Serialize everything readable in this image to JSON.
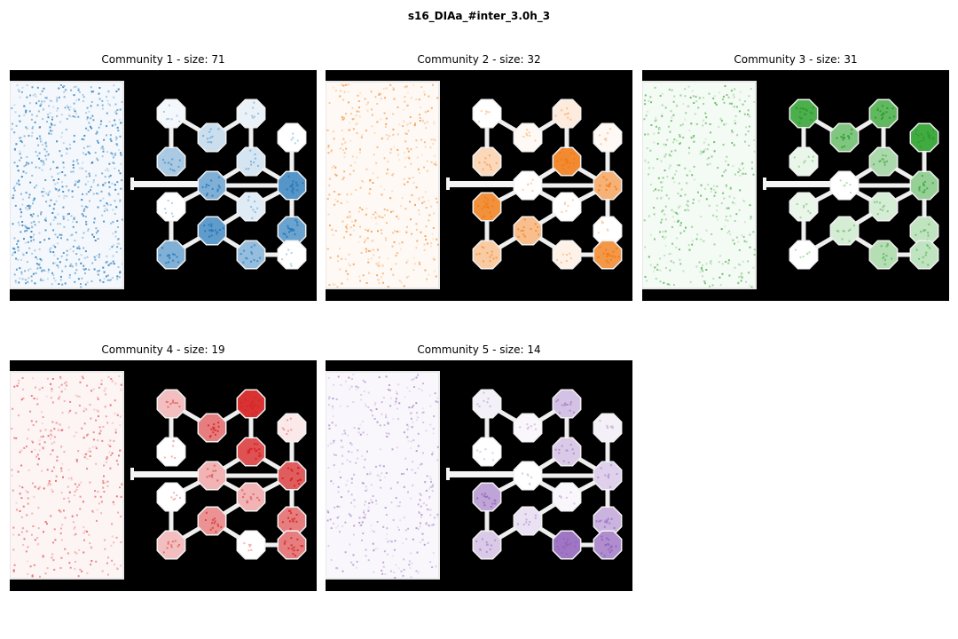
{
  "figure": {
    "title": "s16_DIAa_#inter_3.0h_3"
  },
  "chart_data": [
    {
      "type": "heatmap",
      "title": "Community 1 - size: 71",
      "colormap": "Blues",
      "color": "#2b7bba",
      "level": 0.55,
      "node_levels": [
        0.05,
        0.25,
        0.1,
        0.4,
        0.0,
        0.2,
        0.6,
        0.8,
        0.0,
        0.15,
        0.7,
        0.75,
        0.5,
        0.6,
        0.0
      ]
    },
    {
      "type": "heatmap",
      "title": "Community 2 - size: 32",
      "colormap": "Oranges",
      "color": "#f07d1a",
      "level": 0.2,
      "node_levels": [
        0.0,
        0.05,
        0.15,
        0.3,
        0.05,
        0.9,
        0.0,
        0.6,
        0.85,
        0.0,
        0.0,
        0.5,
        0.1,
        0.4,
        0.8
      ]
    },
    {
      "type": "heatmap",
      "title": "Community 3 - size: 31",
      "colormap": "Greens",
      "color": "#2ca02c",
      "level": 0.2,
      "node_levels": [
        0.85,
        0.6,
        0.75,
        0.1,
        0.9,
        0.4,
        0.0,
        0.5,
        0.1,
        0.2,
        0.3,
        0.2,
        0.35,
        0.0,
        0.3
      ]
    },
    {
      "type": "heatmap",
      "title": "Community 4 - size: 19",
      "colormap": "Reds",
      "color": "#d62728",
      "level": 0.15,
      "node_levels": [
        0.3,
        0.6,
        0.95,
        0.0,
        0.1,
        0.8,
        0.35,
        0.75,
        0.0,
        0.35,
        0.6,
        0.5,
        0.0,
        0.3,
        0.6
      ]
    },
    {
      "type": "heatmap",
      "title": "Community 5 - size: 14",
      "colormap": "Purples",
      "color": "#9467bd",
      "level": 0.15,
      "node_levels": [
        0.1,
        0.05,
        0.4,
        0.0,
        0.1,
        0.35,
        0.0,
        0.3,
        0.6,
        0.05,
        0.5,
        0.2,
        0.9,
        0.35,
        0.75
      ]
    }
  ]
}
